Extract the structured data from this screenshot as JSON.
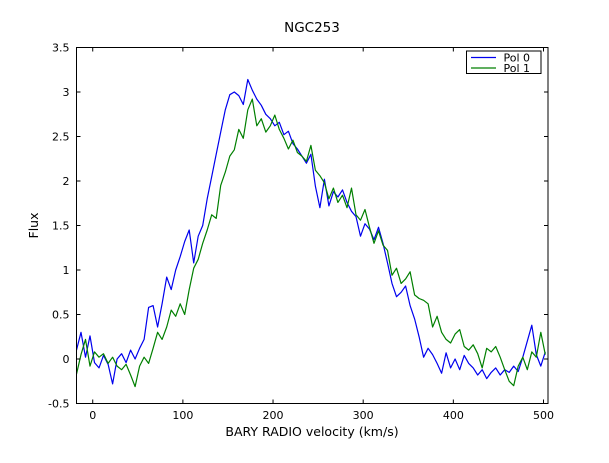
{
  "window": {
    "background": "#ffffff",
    "frame_color": "#000000"
  },
  "chart_data": {
    "type": "line",
    "title": "NGC253",
    "xlabel": "BARY RADIO velocity (km/s)",
    "ylabel": "Flux",
    "xlim": [
      -18,
      505
    ],
    "ylim": [
      -0.5,
      3.5
    ],
    "xticks": [
      0,
      100,
      200,
      300,
      400,
      500
    ],
    "yticks": [
      -0.5,
      0,
      0.5,
      1,
      1.5,
      2,
      2.5,
      3,
      3.5
    ],
    "grid": false,
    "legend_position": "upper right",
    "x_start": -18,
    "x_step": 5,
    "series": [
      {
        "name": "Pol 0",
        "color": "#0000ee",
        "values": [
          0.1,
          0.3,
          0.02,
          0.26,
          -0.04,
          -0.1,
          0.04,
          -0.06,
          -0.28,
          0.0,
          0.06,
          -0.04,
          0.1,
          0.0,
          0.12,
          0.22,
          0.58,
          0.6,
          0.36,
          0.62,
          0.92,
          0.78,
          1.0,
          1.15,
          1.32,
          1.45,
          1.08,
          1.38,
          1.5,
          1.8,
          2.05,
          2.3,
          2.55,
          2.8,
          2.97,
          3.0,
          2.96,
          2.86,
          3.14,
          3.02,
          2.92,
          2.85,
          2.75,
          2.7,
          2.62,
          2.66,
          2.52,
          2.56,
          2.42,
          2.36,
          2.28,
          2.2,
          2.3,
          1.94,
          1.7,
          2.02,
          1.72,
          1.88,
          1.82,
          1.9,
          1.76,
          1.66,
          1.6,
          1.38,
          1.52,
          1.46,
          1.34,
          1.48,
          1.3,
          1.08,
          0.85,
          0.7,
          0.75,
          0.82,
          0.6,
          0.45,
          0.25,
          0.02,
          0.12,
          0.05,
          -0.05,
          -0.16,
          0.07,
          -0.1,
          0.0,
          -0.12,
          0.04,
          -0.05,
          -0.1,
          -0.18,
          -0.12,
          -0.22,
          -0.15,
          -0.1,
          -0.18,
          -0.12,
          -0.15,
          -0.08,
          -0.14,
          0.02,
          0.2,
          0.38,
          0.05,
          -0.08,
          0.08
        ]
      },
      {
        "name": "Pol 1",
        "color": "#007f00",
        "values": [
          -0.17,
          0.05,
          0.22,
          -0.08,
          0.08,
          0.02,
          0.06,
          -0.05,
          0.02,
          -0.08,
          -0.12,
          -0.06,
          -0.18,
          -0.31,
          -0.08,
          0.02,
          -0.05,
          0.12,
          0.3,
          0.22,
          0.36,
          0.55,
          0.48,
          0.62,
          0.5,
          0.78,
          1.02,
          1.12,
          1.3,
          1.45,
          1.62,
          1.58,
          1.95,
          2.1,
          2.28,
          2.35,
          2.58,
          2.48,
          2.8,
          2.92,
          2.62,
          2.7,
          2.55,
          2.62,
          2.74,
          2.58,
          2.48,
          2.36,
          2.46,
          2.32,
          2.28,
          2.22,
          2.4,
          2.12,
          2.06,
          1.98,
          1.8,
          1.92,
          1.76,
          1.84,
          1.7,
          1.92,
          1.62,
          1.56,
          1.68,
          1.48,
          1.3,
          1.44,
          1.28,
          1.22,
          0.94,
          1.02,
          0.85,
          0.9,
          0.98,
          0.72,
          0.68,
          0.66,
          0.62,
          0.36,
          0.48,
          0.3,
          0.22,
          0.18,
          0.28,
          0.33,
          0.14,
          0.1,
          0.16,
          0.06,
          -0.1,
          0.12,
          0.08,
          0.14,
          0.02,
          -0.12,
          -0.25,
          -0.3,
          -0.08,
          0.02,
          -0.12,
          0.08,
          0.02,
          0.3,
          0.05
        ]
      }
    ]
  }
}
